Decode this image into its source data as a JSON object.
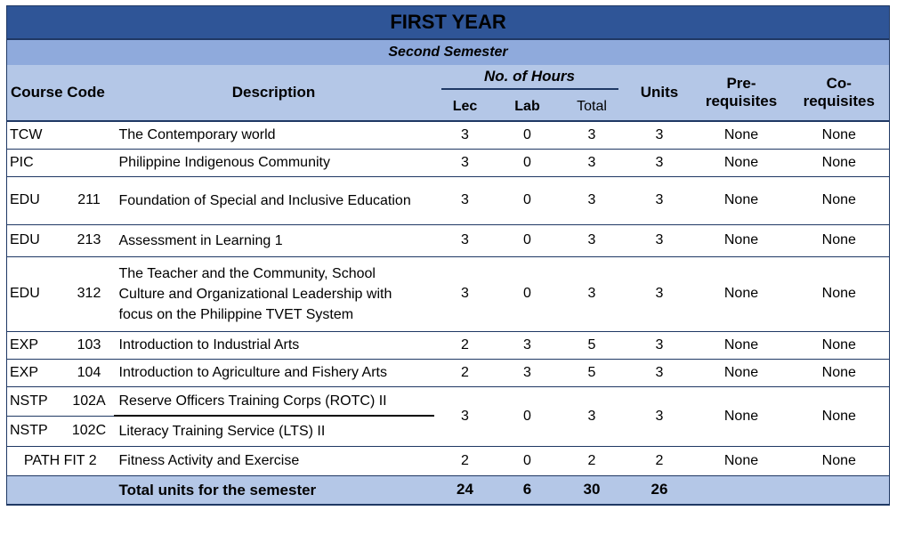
{
  "year_title": "FIRST YEAR",
  "semester_title": "Second Semester",
  "headers": {
    "course_code": "Course Code",
    "description": "Description",
    "no_of_hours": "No. of Hours",
    "lec": "Lec",
    "lab": "Lab",
    "total": "Total",
    "units": "Units",
    "prereq_1": "Pre-",
    "prereq_2": "requisites",
    "coreq_1": "Co-",
    "coreq_2": "requisites"
  },
  "rows": [
    {
      "code": "TCW",
      "num": "",
      "desc": "The Contemporary world",
      "lec": "3",
      "lab": "0",
      "total": "3",
      "units": "3",
      "pre": "None",
      "co": "None"
    },
    {
      "code": "PIC",
      "num": "",
      "desc": "Philippine Indigenous Community",
      "lec": "3",
      "lab": "0",
      "total": "3",
      "units": "3",
      "pre": "None",
      "co": "None"
    },
    {
      "code": "EDU",
      "num": "211",
      "desc": "Foundation of Special and Inclusive Education",
      "lec": "3",
      "lab": "0",
      "total": "3",
      "units": "3",
      "pre": "None",
      "co": "None"
    },
    {
      "code": "EDU",
      "num": "213",
      "desc": "Assessment in Learning 1",
      "lec": "3",
      "lab": "0",
      "total": "3",
      "units": "3",
      "pre": "None",
      "co": "None"
    },
    {
      "code": "EDU",
      "num": "312",
      "desc_lines": [
        "The Teacher and the Community, School",
        "Culture and Organizational Leadership with",
        "focus on the Philippine TVET System"
      ],
      "lec": "3",
      "lab": "0",
      "total": "3",
      "units": "3",
      "pre": "None",
      "co": "None"
    },
    {
      "code": "EXP",
      "num": "103",
      "desc": "Introduction to Industrial Arts",
      "lec": "2",
      "lab": "3",
      "total": "5",
      "units": "3",
      "pre": "None",
      "co": "None"
    },
    {
      "code": "EXP",
      "num": "104",
      "desc": "Introduction to Agriculture and Fishery Arts",
      "lec": "2",
      "lab": "3",
      "total": "5",
      "units": "3",
      "pre": "None",
      "co": "None"
    }
  ],
  "nstp": {
    "a_code": "NSTP",
    "a_num": "102A",
    "a_desc": "Reserve Officers Training Corps (ROTC) II",
    "b_code": "NSTP",
    "b_num": "102C",
    "b_desc": "Literacy Training Service (LTS) II",
    "lec": "3",
    "lab": "0",
    "total": "3",
    "units": "3",
    "pre": "None",
    "co": "None"
  },
  "pathfit": {
    "code": "PATH FIT 2",
    "desc": "Fitness Activity and Exercise",
    "lec": "2",
    "lab": "0",
    "total": "2",
    "units": "2",
    "pre": "None",
    "co": "None"
  },
  "totals": {
    "label": "Total units for the semester",
    "lec": "24",
    "lab": "6",
    "total": "30",
    "units": "26"
  }
}
